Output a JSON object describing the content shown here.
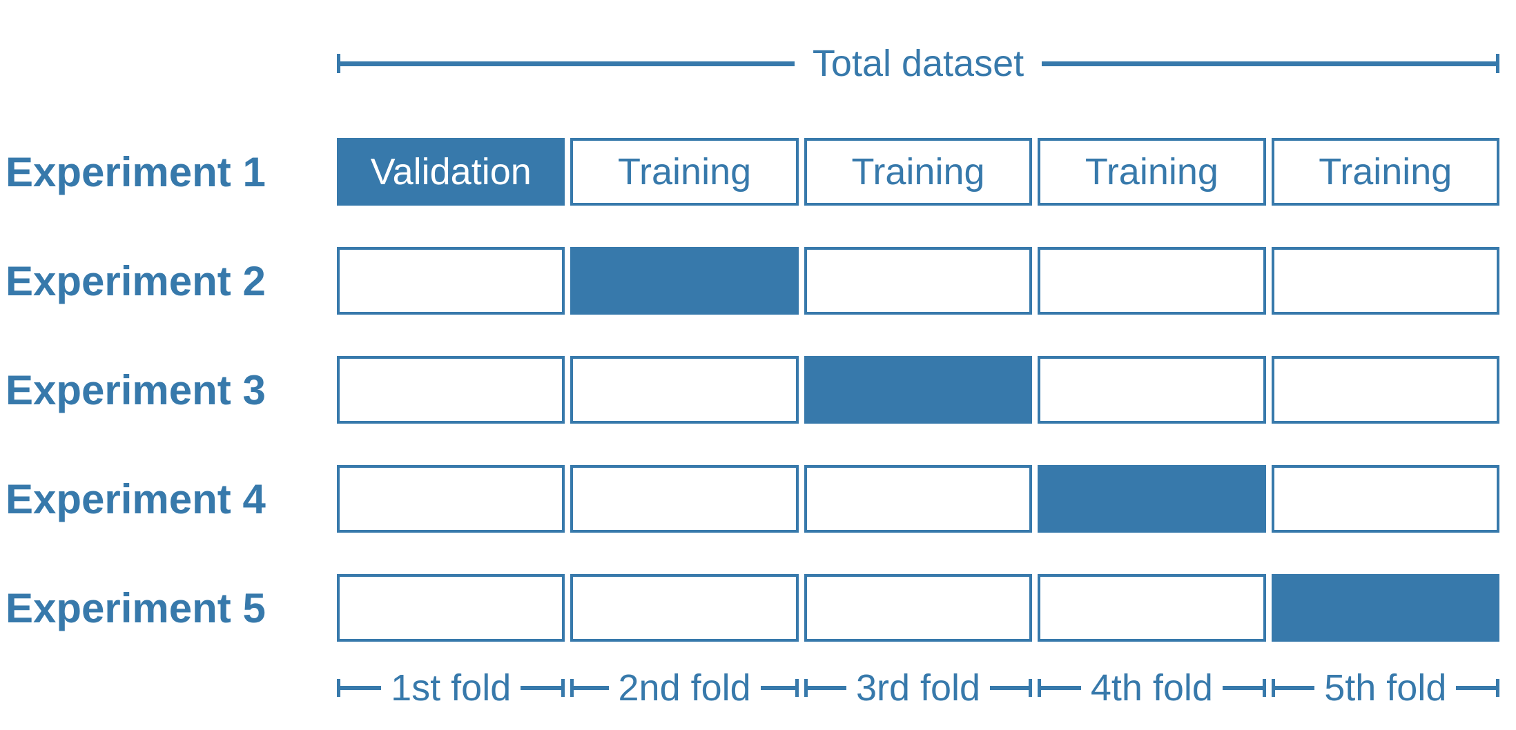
{
  "colors": {
    "blue": "#3779ab",
    "background": "#ffffff",
    "validation_text": "#ffffff"
  },
  "header": {
    "title": "Total dataset"
  },
  "experiments": [
    {
      "label": "Experiment 1",
      "validation_fold": 1,
      "cells": [
        "Validation",
        "Training",
        "Training",
        "Training",
        "Training"
      ]
    },
    {
      "label": "Experiment 2",
      "validation_fold": 2,
      "cells": [
        "",
        "",
        "",
        "",
        ""
      ]
    },
    {
      "label": "Experiment 3",
      "validation_fold": 3,
      "cells": [
        "",
        "",
        "",
        "",
        ""
      ]
    },
    {
      "label": "Experiment 4",
      "validation_fold": 4,
      "cells": [
        "",
        "",
        "",
        "",
        ""
      ]
    },
    {
      "label": "Experiment 5",
      "validation_fold": 5,
      "cells": [
        "",
        "",
        "",
        "",
        ""
      ]
    }
  ],
  "folds": [
    "1st fold",
    "2nd fold",
    "3rd fold",
    "4th fold",
    "5th fold"
  ]
}
